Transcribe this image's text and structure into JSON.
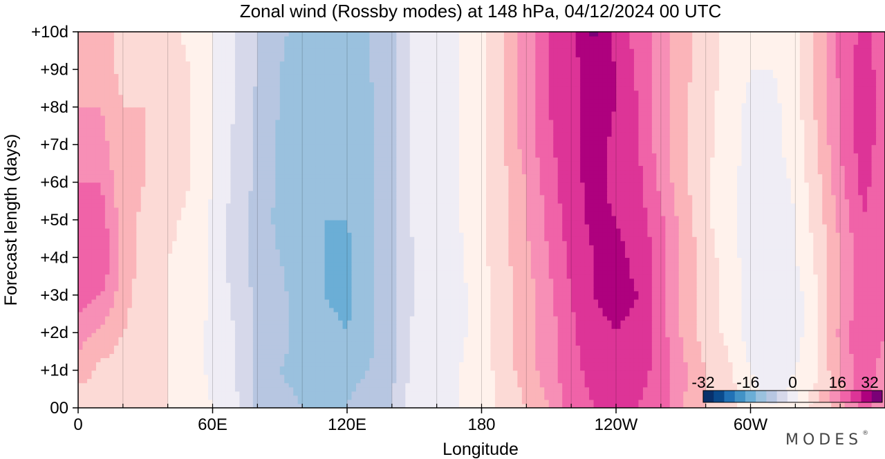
{
  "chart_data": {
    "type": "heatmap",
    "title": "Zonal wind (Rossby modes) at 148 hPa,  04/12/2024  00 UTC",
    "xlabel": "Longitude",
    "ylabel": "Forecast length (days)",
    "x_ticks": [
      {
        "lon": 0,
        "label": "0"
      },
      {
        "lon": 60,
        "label": "60E"
      },
      {
        "lon": 120,
        "label": "120E"
      },
      {
        "lon": 180,
        "label": "180"
      },
      {
        "lon": 240,
        "label": "120W"
      },
      {
        "lon": 300,
        "label": "60W"
      }
    ],
    "y_ticks": [
      {
        "day": 0,
        "label": "00"
      },
      {
        "day": 1,
        "label": "+1d"
      },
      {
        "day": 2,
        "label": "+2d"
      },
      {
        "day": 3,
        "label": "+3d"
      },
      {
        "day": 4,
        "label": "+4d"
      },
      {
        "day": 5,
        "label": "+5d"
      },
      {
        "day": 6,
        "label": "+6d"
      },
      {
        "day": 7,
        "label": "+7d"
      },
      {
        "day": 8,
        "label": "+8d"
      },
      {
        "day": 9,
        "label": "+9d"
      },
      {
        "day": 10,
        "label": "+10d"
      }
    ],
    "xlim": [
      0,
      360
    ],
    "ylim": [
      0,
      10
    ],
    "x_grid": [
      0,
      20,
      40,
      60,
      80,
      100,
      120,
      140,
      160,
      180,
      200,
      220,
      240,
      260,
      280,
      300,
      320,
      340
    ],
    "colorbar": {
      "ticks": [
        {
          "value": -32,
          "label": "-32"
        },
        {
          "value": -16,
          "label": "-16"
        },
        {
          "value": 0,
          "label": "0"
        },
        {
          "value": 16,
          "label": "16"
        },
        {
          "value": 32,
          "label": "32"
        }
      ],
      "levels": [
        -32,
        -28,
        -24,
        -20,
        -16,
        -12,
        -8,
        -4,
        0,
        4,
        8,
        12,
        16,
        20,
        24,
        28,
        32
      ],
      "colors": [
        "#08306b",
        "#0a4a8c",
        "#2171b5",
        "#4292c6",
        "#6baed6",
        "#9ac1de",
        "#b7c6e1",
        "#d6d8ea",
        "#efedf5",
        "#fff2ec",
        "#fcdad6",
        "#fbb4b9",
        "#f78fb6",
        "#f063a8",
        "#dd3497",
        "#ae017e",
        "#7a0177"
      ],
      "placement": "bottom-right"
    },
    "x": [
      0,
      10,
      20,
      30,
      40,
      50,
      60,
      70,
      80,
      90,
      100,
      110,
      120,
      130,
      140,
      150,
      160,
      170,
      180,
      190,
      200,
      210,
      220,
      230,
      240,
      250,
      260,
      270,
      280,
      290,
      300,
      310,
      320,
      330,
      340,
      350,
      360
    ],
    "y": [
      0,
      1,
      2,
      3,
      4,
      5,
      6,
      7,
      8,
      9,
      10
    ],
    "z": [
      [
        9,
        10,
        12,
        9,
        8,
        6,
        4,
        1,
        -5,
        -7,
        -8,
        -8,
        -8,
        -6,
        -4,
        2,
        3,
        4,
        6,
        9,
        12,
        16,
        22,
        24,
        24,
        24,
        22,
        16,
        12,
        10,
        6,
        4,
        6,
        9,
        14,
        22,
        16
      ],
      [
        14,
        11,
        10,
        9,
        8,
        6,
        3,
        0,
        -5,
        -8,
        -9,
        -9,
        -9,
        -8,
        -5,
        2,
        3,
        4,
        6,
        10,
        14,
        18,
        23,
        25,
        26,
        25,
        23,
        17,
        12,
        9,
        4,
        1,
        4,
        8,
        16,
        23,
        18
      ],
      [
        18,
        15,
        12,
        9,
        8,
        6,
        3,
        0,
        -5,
        -7,
        -9,
        -11,
        -12,
        -9,
        -5,
        1,
        2,
        3,
        6,
        10,
        14,
        18,
        23,
        27,
        28,
        27,
        22,
        15,
        10,
        7,
        2,
        0,
        2,
        8,
        17,
        24,
        20
      ],
      [
        22,
        20,
        14,
        9,
        8,
        7,
        3,
        -1,
        -5,
        -7,
        -10,
        -12,
        -13,
        -9,
        -5,
        0,
        2,
        3,
        6,
        10,
        14,
        19,
        24,
        28,
        29,
        28,
        22,
        15,
        10,
        7,
        2,
        0,
        2,
        8,
        16,
        22,
        22
      ],
      [
        24,
        24,
        15,
        10,
        8,
        7,
        3,
        -2,
        -6,
        -8,
        -10,
        -12,
        -13,
        -9,
        -5,
        0,
        2,
        3,
        7,
        11,
        15,
        20,
        25,
        28,
        29,
        27,
        22,
        15,
        10,
        6,
        2,
        1,
        4,
        9,
        16,
        22,
        22
      ],
      [
        22,
        22,
        14,
        11,
        9,
        7,
        3,
        -2,
        -6,
        -9,
        -11,
        -12,
        -12,
        -9,
        -5,
        1,
        2,
        4,
        7,
        11,
        16,
        21,
        26,
        29,
        28,
        26,
        21,
        14,
        9,
        5,
        2,
        0,
        4,
        10,
        17,
        24,
        22
      ],
      [
        20,
        20,
        13,
        12,
        11,
        8,
        4,
        -1,
        -5,
        -9,
        -11,
        -12,
        -12,
        -9,
        -5,
        1,
        2,
        4,
        7,
        11,
        16,
        22,
        27,
        29,
        27,
        25,
        19,
        13,
        9,
        5,
        2,
        1,
        5,
        11,
        19,
        25,
        22
      ],
      [
        18,
        18,
        12,
        12,
        11,
        8,
        4,
        -1,
        -5,
        -9,
        -11,
        -12,
        -12,
        -9,
        -5,
        1,
        2,
        4,
        7,
        12,
        18,
        23,
        27,
        30,
        27,
        24,
        18,
        13,
        9,
        6,
        3,
        3,
        6,
        12,
        20,
        26,
        22
      ],
      [
        16,
        16,
        12,
        12,
        11,
        8,
        4,
        0,
        -5,
        -8,
        -10,
        -12,
        -11,
        -9,
        -5,
        1,
        2,
        4,
        7,
        12,
        18,
        24,
        27,
        29,
        28,
        24,
        18,
        13,
        9,
        6,
        3,
        3,
        6,
        13,
        20,
        26,
        22
      ],
      [
        14,
        14,
        11,
        12,
        11,
        8,
        4,
        0,
        -4,
        -8,
        -10,
        -12,
        -10,
        -8,
        -5,
        1,
        2,
        4,
        7,
        12,
        18,
        24,
        27,
        29,
        28,
        23,
        18,
        13,
        10,
        7,
        4,
        4,
        6,
        13,
        21,
        26,
        22
      ],
      [
        14,
        14,
        11,
        10,
        9,
        7,
        4,
        0,
        -4,
        -7,
        -10,
        -11,
        -10,
        -8,
        -5,
        1,
        2,
        4,
        7,
        12,
        18,
        24,
        27,
        33,
        27,
        22,
        18,
        13,
        10,
        7,
        4,
        4,
        6,
        13,
        21,
        25,
        22
      ]
    ]
  }
}
